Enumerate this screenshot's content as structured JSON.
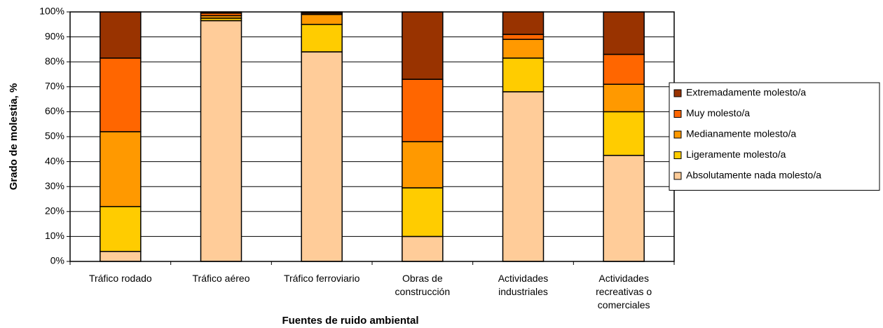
{
  "chart_data": {
    "type": "stacked_bar",
    "x_label": "Fuentes de ruido ambiental",
    "y_label": "Grado de molestia, %",
    "categories": [
      "Tráfico rodado",
      "Tráfico aéreo",
      "Tráfico ferroviario",
      "Obras de construcción",
      "Actividades industriales",
      "Actividades recreativas o comerciales"
    ],
    "series": [
      {
        "name": "Absolutamente nada molesto/a",
        "color": "#FFCC99",
        "values": [
          4,
          96.5,
          84,
          10,
          68,
          42.5
        ]
      },
      {
        "name": "Ligeramente molesto/a",
        "color": "#FFCC00",
        "values": [
          18,
          1,
          11,
          19.5,
          13.5,
          17.5
        ]
      },
      {
        "name": "Medianamente molesto/a",
        "color": "#FF9900",
        "values": [
          30,
          1,
          4,
          18.5,
          7.5,
          11
        ]
      },
      {
        "name": "Muy molesto/a",
        "color": "#FF6600",
        "values": [
          29.5,
          1,
          0.5,
          25,
          2,
          12
        ]
      },
      {
        "name": "Extremadamente molesto/a",
        "color": "#993300",
        "values": [
          18.5,
          0.5,
          0.5,
          27,
          9,
          17
        ]
      }
    ],
    "ylim": [
      0,
      100
    ],
    "yticks": [
      {
        "value": 0,
        "label": "0%"
      },
      {
        "value": 10,
        "label": "10%"
      },
      {
        "value": 20,
        "label": "20%"
      },
      {
        "value": 30,
        "label": "30%"
      },
      {
        "value": 40,
        "label": "40%"
      },
      {
        "value": 50,
        "label": "50%"
      },
      {
        "value": 60,
        "label": "60%"
      },
      {
        "value": 70,
        "label": "70%"
      },
      {
        "value": 80,
        "label": "80%"
      },
      {
        "value": 90,
        "label": "90%"
      },
      {
        "value": 100,
        "label": "100%"
      }
    ],
    "grid": true,
    "legend": "right"
  }
}
